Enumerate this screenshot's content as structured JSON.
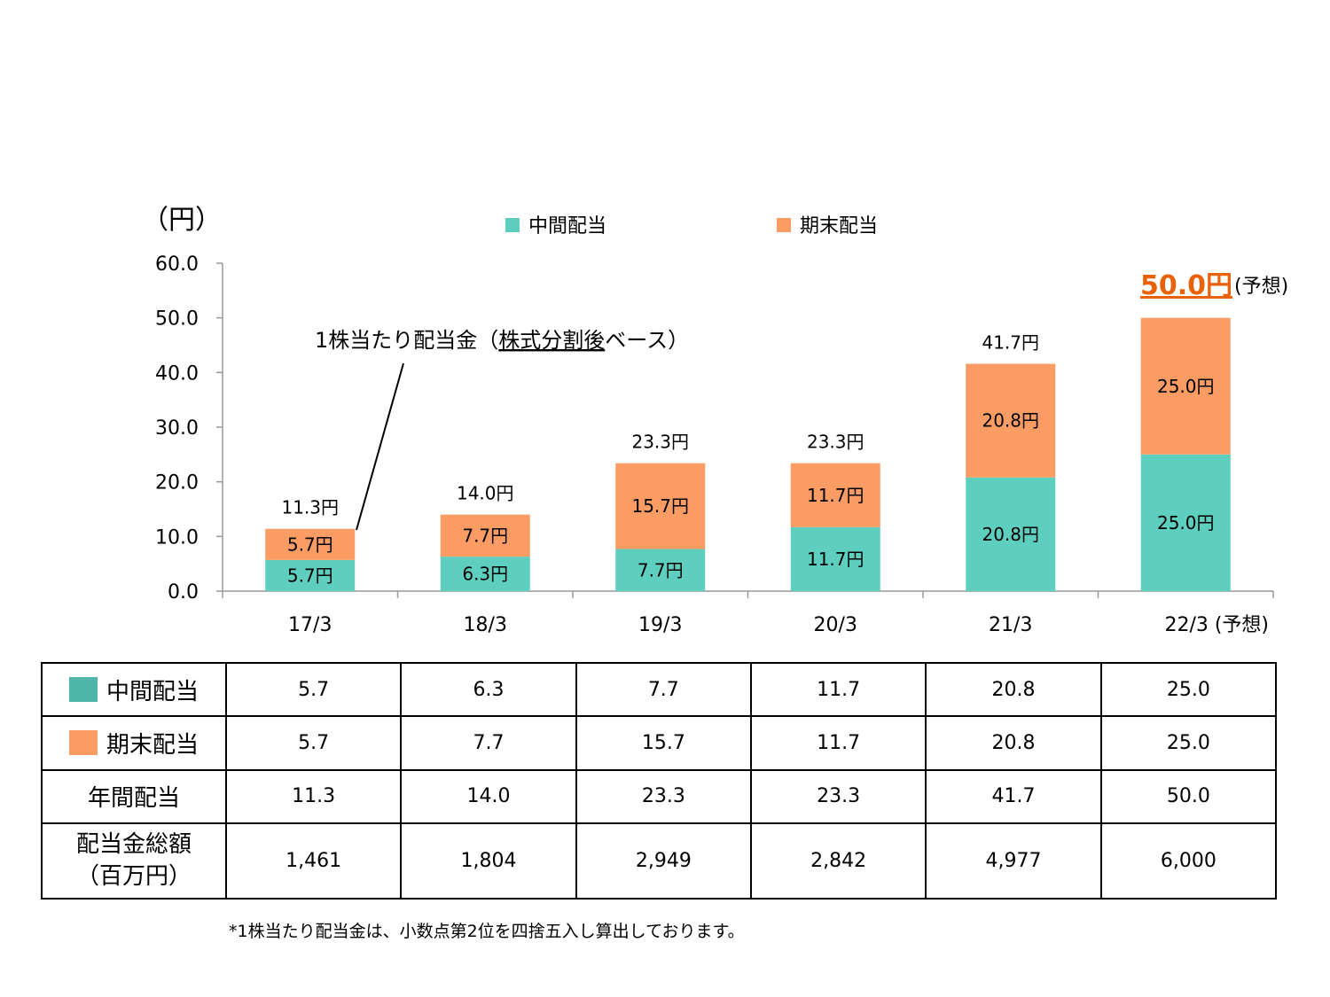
{
  "chart_data": {
    "type": "bar",
    "stacked": true,
    "unit_label": "（円）",
    "categories": [
      "17/3",
      "18/3",
      "19/3",
      "20/3",
      "21/3",
      "22/3 (予想)"
    ],
    "series": [
      {
        "name": "中間配当",
        "color": "#5ECFBF",
        "values": [
          5.7,
          6.3,
          7.7,
          11.7,
          20.8,
          25.0
        ],
        "labels": [
          "5.7円",
          "6.3円",
          "7.7円",
          "11.7円",
          "20.8円",
          "25.0円"
        ]
      },
      {
        "name": "期末配当",
        "color": "#FA9C64",
        "values": [
          5.7,
          7.7,
          15.7,
          11.7,
          20.8,
          25.0
        ],
        "labels": [
          "5.7円",
          "7.7円",
          "15.7円",
          "11.7円",
          "20.8円",
          "25.0円"
        ]
      }
    ],
    "totals": [
      11.3,
      14.0,
      23.3,
      23.3,
      41.7,
      50.0
    ],
    "total_labels": [
      "11.3円",
      "14.0円",
      "23.3円",
      "23.3円",
      "41.7円"
    ],
    "forecast_total_label": "50.0円",
    "forecast_note": "(予想)",
    "ylim": [
      0,
      60
    ],
    "yticks": [
      "0.0",
      "10.0",
      "20.0",
      "30.0",
      "40.0",
      "50.0",
      "60.0"
    ],
    "legend_position": "top",
    "annotation": {
      "prefix": "1株当たり配当金（",
      "underlined": "株式分割後",
      "suffix": "ベース）"
    },
    "highlight_color": "#E8620A"
  },
  "table": {
    "swatch_colors": [
      "#4FB5A9",
      "#FA9C64"
    ],
    "rows": [
      {
        "label": "中間配当",
        "values": [
          "5.7",
          "6.3",
          "7.7",
          "11.7",
          "20.8",
          "25.0"
        ]
      },
      {
        "label": "期末配当",
        "values": [
          "5.7",
          "7.7",
          "15.7",
          "11.7",
          "20.8",
          "25.0"
        ]
      },
      {
        "label": "年間配当",
        "values": [
          "11.3",
          "14.0",
          "23.3",
          "23.3",
          "41.7",
          "50.0"
        ]
      },
      {
        "label_line1": "配当金総額",
        "label_line2": "（百万円）",
        "values": [
          "1,461",
          "1,804",
          "2,949",
          "2,842",
          "4,977",
          "6,000"
        ]
      }
    ]
  },
  "footnote": "*1株当たり配当金は、小数点第2位を四捨五入し算出しております。"
}
